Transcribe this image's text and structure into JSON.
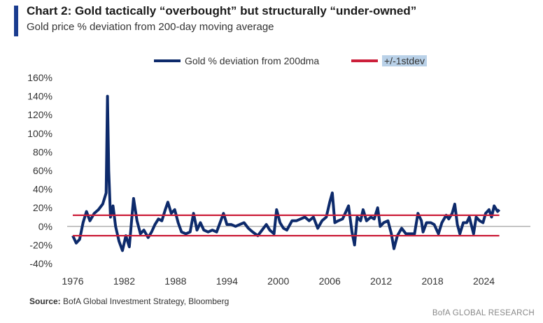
{
  "header": {
    "title": "Chart 2: Gold tactically “overbought” but structurally “under-owned”",
    "subtitle": "Gold price % deviation from 200-day moving average"
  },
  "footer": {
    "source_label": "Source:",
    "source_text": "BofA Global Investment Strategy, Bloomberg",
    "brand": "BofA GLOBAL RESEARCH"
  },
  "chart_data": {
    "type": "line",
    "title": "Chart 2: Gold tactically “overbought” but structurally “under-owned”",
    "subtitle": "Gold price % deviation from 200-day moving average",
    "xlabel": "",
    "ylabel": "",
    "xlim": [
      1976,
      2026
    ],
    "ylim": [
      -40,
      160
    ],
    "x_ticks": [
      "1976",
      "1982",
      "1988",
      "1994",
      "2000",
      "2006",
      "2012",
      "2018",
      "2024"
    ],
    "y_ticks": [
      "160%",
      "140%",
      "120%",
      "100%",
      "80%",
      "60%",
      "40%",
      "20%",
      "0%",
      "-20%",
      "-40%"
    ],
    "legend_position": "top-center",
    "colors": {
      "series": "#0d2a6b",
      "band": "#cc1f3a",
      "zero_line": "#9a9a9a"
    },
    "series": [
      {
        "name": "Gold % deviation from 200dma",
        "points": [
          [
            1976.0,
            -10
          ],
          [
            1976.4,
            -18
          ],
          [
            1976.8,
            -14
          ],
          [
            1977.2,
            4
          ],
          [
            1977.6,
            16
          ],
          [
            1978.0,
            6
          ],
          [
            1978.5,
            14
          ],
          [
            1979.0,
            18
          ],
          [
            1979.5,
            24
          ],
          [
            1979.9,
            36
          ],
          [
            1980.05,
            140
          ],
          [
            1980.2,
            60
          ],
          [
            1980.4,
            10
          ],
          [
            1980.7,
            22
          ],
          [
            1981.0,
            0
          ],
          [
            1981.4,
            -16
          ],
          [
            1981.8,
            -26
          ],
          [
            1982.2,
            -10
          ],
          [
            1982.6,
            -22
          ],
          [
            1982.9,
            10
          ],
          [
            1983.1,
            30
          ],
          [
            1983.5,
            6
          ],
          [
            1983.9,
            -8
          ],
          [
            1984.3,
            -4
          ],
          [
            1984.8,
            -12
          ],
          [
            1985.2,
            -6
          ],
          [
            1985.6,
            2
          ],
          [
            1986.0,
            8
          ],
          [
            1986.4,
            6
          ],
          [
            1986.8,
            18
          ],
          [
            1987.1,
            26
          ],
          [
            1987.5,
            14
          ],
          [
            1987.9,
            18
          ],
          [
            1988.3,
            4
          ],
          [
            1988.7,
            -6
          ],
          [
            1989.2,
            -8
          ],
          [
            1989.7,
            -6
          ],
          [
            1990.1,
            14
          ],
          [
            1990.5,
            -4
          ],
          [
            1990.9,
            4
          ],
          [
            1991.3,
            -4
          ],
          [
            1991.8,
            -6
          ],
          [
            1992.3,
            -4
          ],
          [
            1992.8,
            -6
          ],
          [
            1993.2,
            4
          ],
          [
            1993.6,
            14
          ],
          [
            1994.0,
            2
          ],
          [
            1994.5,
            2
          ],
          [
            1995.0,
            0
          ],
          [
            1995.5,
            2
          ],
          [
            1996.0,
            4
          ],
          [
            1996.5,
            -2
          ],
          [
            1997.0,
            -6
          ],
          [
            1997.6,
            -10
          ],
          [
            1998.1,
            -4
          ],
          [
            1998.6,
            2
          ],
          [
            1999.0,
            -4
          ],
          [
            1999.5,
            -8
          ],
          [
            1999.8,
            18
          ],
          [
            2000.2,
            4
          ],
          [
            2000.6,
            -2
          ],
          [
            2001.0,
            -4
          ],
          [
            2001.6,
            6
          ],
          [
            2002.1,
            6
          ],
          [
            2002.6,
            8
          ],
          [
            2003.1,
            10
          ],
          [
            2003.6,
            6
          ],
          [
            2004.1,
            10
          ],
          [
            2004.6,
            -2
          ],
          [
            2005.1,
            6
          ],
          [
            2005.6,
            10
          ],
          [
            2006.0,
            26
          ],
          [
            2006.3,
            36
          ],
          [
            2006.6,
            4
          ],
          [
            2007.0,
            6
          ],
          [
            2007.5,
            8
          ],
          [
            2007.9,
            16
          ],
          [
            2008.2,
            22
          ],
          [
            2008.6,
            -6
          ],
          [
            2008.9,
            -20
          ],
          [
            2009.2,
            10
          ],
          [
            2009.6,
            6
          ],
          [
            2009.9,
            18
          ],
          [
            2010.3,
            6
          ],
          [
            2010.8,
            10
          ],
          [
            2011.2,
            8
          ],
          [
            2011.6,
            20
          ],
          [
            2011.9,
            0
          ],
          [
            2012.3,
            4
          ],
          [
            2012.8,
            6
          ],
          [
            2013.2,
            -8
          ],
          [
            2013.5,
            -24
          ],
          [
            2013.9,
            -10
          ],
          [
            2014.4,
            -2
          ],
          [
            2014.9,
            -8
          ],
          [
            2015.4,
            -8
          ],
          [
            2015.9,
            -8
          ],
          [
            2016.3,
            14
          ],
          [
            2016.7,
            6
          ],
          [
            2016.9,
            -6
          ],
          [
            2017.3,
            4
          ],
          [
            2017.8,
            4
          ],
          [
            2018.2,
            2
          ],
          [
            2018.7,
            -8
          ],
          [
            2019.1,
            4
          ],
          [
            2019.6,
            12
          ],
          [
            2019.9,
            8
          ],
          [
            2020.3,
            14
          ],
          [
            2020.6,
            24
          ],
          [
            2020.9,
            2
          ],
          [
            2021.2,
            -8
          ],
          [
            2021.6,
            4
          ],
          [
            2022.0,
            4
          ],
          [
            2022.3,
            10
          ],
          [
            2022.8,
            -8
          ],
          [
            2023.1,
            10
          ],
          [
            2023.5,
            6
          ],
          [
            2023.9,
            4
          ],
          [
            2024.2,
            14
          ],
          [
            2024.6,
            18
          ],
          [
            2024.9,
            10
          ],
          [
            2025.2,
            22
          ],
          [
            2025.6,
            16
          ],
          [
            2025.8,
            18
          ]
        ]
      },
      {
        "name": "+/-1stdev",
        "upper": 12,
        "lower": -10
      }
    ]
  }
}
